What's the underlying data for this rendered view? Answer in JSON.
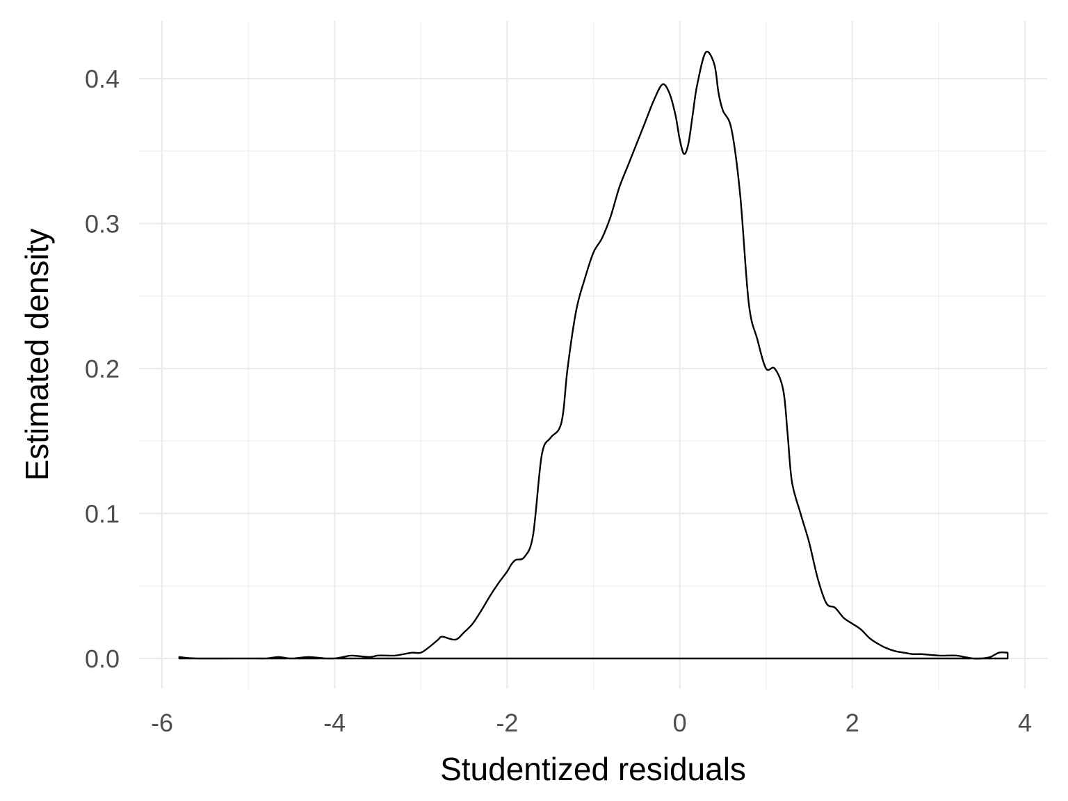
{
  "chart_data": {
    "type": "area",
    "xlabel": "Studentized residuals",
    "ylabel": "Estimated density",
    "xlim": [
      -6,
      4
    ],
    "ylim": [
      0,
      0.43
    ],
    "x_ticks": [
      {
        "value": -6,
        "label": "-6"
      },
      {
        "value": -4,
        "label": "-4"
      },
      {
        "value": -2,
        "label": "-2"
      },
      {
        "value": 0,
        "label": "0"
      },
      {
        "value": 2,
        "label": "2"
      },
      {
        "value": 4,
        "label": "4"
      }
    ],
    "y_ticks": [
      {
        "value": 0.0,
        "label": "0.0"
      },
      {
        "value": 0.1,
        "label": "0.1"
      },
      {
        "value": 0.2,
        "label": "0.2"
      },
      {
        "value": 0.3,
        "label": "0.3"
      },
      {
        "value": 0.4,
        "label": "0.4"
      }
    ],
    "grid": true,
    "line_color": "#000000",
    "series": [
      {
        "x": [
          -5.8,
          -5.6,
          -5.0,
          -4.8,
          -4.65,
          -4.5,
          -4.3,
          -4.1,
          -4.0,
          -3.9,
          -3.8,
          -3.6,
          -3.5,
          -3.4,
          -3.3,
          -3.2,
          -3.1,
          -3.0,
          -2.9,
          -2.8,
          -2.75,
          -2.6,
          -2.5,
          -2.4,
          -2.3,
          -2.2,
          -2.1,
          -2.0,
          -1.95,
          -1.9,
          -1.8,
          -1.7,
          -1.6,
          -1.5,
          -1.4,
          -1.35,
          -1.3,
          -1.2,
          -1.1,
          -1.0,
          -0.9,
          -0.8,
          -0.7,
          -0.6,
          -0.5,
          -0.4,
          -0.3,
          -0.2,
          -0.12,
          -0.05,
          0.0,
          0.05,
          0.1,
          0.15,
          0.2,
          0.3,
          0.4,
          0.45,
          0.5,
          0.6,
          0.7,
          0.8,
          0.9,
          1.0,
          1.1,
          1.2,
          1.25,
          1.3,
          1.4,
          1.5,
          1.6,
          1.7,
          1.8,
          1.9,
          2.0,
          2.1,
          2.2,
          2.3,
          2.4,
          2.5,
          2.6,
          2.7,
          2.8,
          3.0,
          3.2,
          3.3,
          3.4,
          3.5,
          3.6,
          3.7,
          3.8
        ],
        "y": [
          0.001,
          0.0,
          0.0,
          0.0,
          0.001,
          0.0,
          0.001,
          0.0,
          0.0,
          0.001,
          0.002,
          0.001,
          0.002,
          0.002,
          0.002,
          0.003,
          0.004,
          0.004,
          0.008,
          0.013,
          0.015,
          0.013,
          0.018,
          0.024,
          0.033,
          0.043,
          0.052,
          0.06,
          0.065,
          0.068,
          0.07,
          0.085,
          0.14,
          0.152,
          0.158,
          0.17,
          0.2,
          0.24,
          0.262,
          0.28,
          0.29,
          0.305,
          0.325,
          0.34,
          0.355,
          0.37,
          0.385,
          0.396,
          0.39,
          0.375,
          0.358,
          0.348,
          0.355,
          0.375,
          0.395,
          0.418,
          0.41,
          0.39,
          0.378,
          0.365,
          0.32,
          0.245,
          0.22,
          0.2,
          0.2,
          0.185,
          0.155,
          0.122,
          0.1,
          0.08,
          0.055,
          0.038,
          0.035,
          0.028,
          0.024,
          0.02,
          0.014,
          0.01,
          0.007,
          0.005,
          0.004,
          0.003,
          0.003,
          0.002,
          0.002,
          0.001,
          0.0,
          0.0,
          0.001,
          0.004,
          0.004
        ]
      }
    ]
  }
}
